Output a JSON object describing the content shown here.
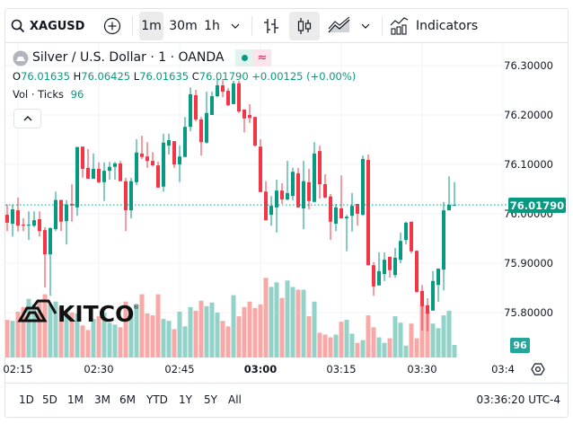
{
  "toolbar": {
    "symbol": "XAGUSD",
    "intervals": [
      "1m",
      "30m",
      "1h"
    ],
    "active_interval": "1m",
    "indicators_label": "Indicators",
    "icons": [
      "search-icon",
      "add-compare-icon",
      "chevron-down-icon",
      "bar-chart-icon",
      "candlestick-icon",
      "area-chart-icon",
      "chevron-down-icon",
      "indicators-icon"
    ]
  },
  "legend": {
    "title": "Silver / U.S. Dollar · 1 · OANDA",
    "market_status_icon": "≈",
    "open_label": "O",
    "open": "76.01635",
    "high_label": "H",
    "high": "76.06425",
    "low_label": "L",
    "low": "76.01635",
    "close_label": "C",
    "close": "76.01790",
    "change": "+0.00125 (+0.00%)",
    "volume_label": "Vol · Ticks",
    "volume_value": "96",
    "collapse_icon": "^"
  },
  "watermark": {
    "text": "KITCO",
    "mark": "®"
  },
  "price_axis": {
    "labels": [
      "76.30000",
      "76.20000",
      "76.10000",
      "76.00000",
      "75.90000",
      "75.80000"
    ],
    "current_price": "76.01790",
    "current_volume": "96"
  },
  "time_axis": {
    "labels": [
      "02:15",
      "02:30",
      "02:45",
      "03:00",
      "03:15",
      "03:30",
      "03:4"
    ],
    "bold_label": "03:00"
  },
  "bottom_bar": {
    "ranges": [
      "1D",
      "5D",
      "1M",
      "3M",
      "6M",
      "YTD",
      "1Y",
      "5Y",
      "All"
    ],
    "clock": "03:36:20 UTC-4"
  },
  "colors": {
    "up": "#089981",
    "down": "#f23645",
    "volume_up": "#92d2c8",
    "volume_down": "#f7a9a7",
    "current_price_bg": "#089981"
  },
  "chart_data": {
    "type": "candlestick",
    "interval": "1m",
    "first_bar_time": "02:13",
    "last_bar_time": "03:36",
    "ylim": [
      75.72,
      76.34
    ],
    "ohlc": [
      [
        75.998,
        76.019,
        75.965,
        75.982
      ],
      [
        75.98,
        76.019,
        75.954,
        76.009
      ],
      [
        76.007,
        76.033,
        75.964,
        75.976
      ],
      [
        75.978,
        75.991,
        75.965,
        75.976
      ],
      [
        75.976,
        76.005,
        75.947,
        75.978
      ],
      [
        75.976,
        76.005,
        75.973,
        75.987
      ],
      [
        75.989,
        76.005,
        75.954,
        75.965
      ],
      [
        75.967,
        75.973,
        75.851,
        75.918
      ],
      [
        75.918,
        75.973,
        75.834,
        75.971
      ],
      [
        75.969,
        76.045,
        75.965,
        76.028
      ],
      [
        76.028,
        76.028,
        75.965,
        75.984
      ],
      [
        75.985,
        76.028,
        75.938,
        76.019
      ],
      [
        76.02,
        76.06,
        75.984,
        76.017
      ],
      [
        76.013,
        76.136,
        75.996,
        76.135
      ],
      [
        76.136,
        76.136,
        76.073,
        76.091
      ],
      [
        76.093,
        76.131,
        76.071,
        76.071
      ],
      [
        76.071,
        76.122,
        76.071,
        76.091
      ],
      [
        76.091,
        76.104,
        76.062,
        76.064
      ],
      [
        76.064,
        76.104,
        76.026,
        76.087
      ],
      [
        76.087,
        76.105,
        76.069,
        76.095
      ],
      [
        76.095,
        76.105,
        76.069,
        76.102
      ],
      [
        76.102,
        76.107,
        76.066,
        76.066
      ],
      [
        76.066,
        76.073,
        75.965,
        76.007
      ],
      [
        76.007,
        76.073,
        75.991,
        76.066
      ],
      [
        76.064,
        76.151,
        76.058,
        76.124
      ],
      [
        76.122,
        76.158,
        76.111,
        76.115
      ],
      [
        76.116,
        76.145,
        76.093,
        76.107
      ],
      [
        76.107,
        76.125,
        76.096,
        76.098
      ],
      [
        76.098,
        76.106,
        76.053,
        76.053
      ],
      [
        76.055,
        76.162,
        76.045,
        76.144
      ],
      [
        76.138,
        76.162,
        76.12,
        76.149
      ],
      [
        76.147,
        76.147,
        76.093,
        76.1
      ],
      [
        76.1,
        76.138,
        76.064,
        76.116
      ],
      [
        76.115,
        76.196,
        76.115,
        76.176
      ],
      [
        76.176,
        76.256,
        76.167,
        76.242
      ],
      [
        76.24,
        76.251,
        76.187,
        76.191
      ],
      [
        76.191,
        76.196,
        76.118,
        76.145
      ],
      [
        76.144,
        76.247,
        76.142,
        76.204
      ],
      [
        76.2,
        76.247,
        76.2,
        76.238
      ],
      [
        76.238,
        76.273,
        76.236,
        76.26
      ],
      [
        76.26,
        76.273,
        76.236,
        76.247
      ],
      [
        76.249,
        76.254,
        76.218,
        76.22
      ],
      [
        76.222,
        76.269,
        76.222,
        76.264
      ],
      [
        76.264,
        76.269,
        76.204,
        76.207
      ],
      [
        76.211,
        76.211,
        76.165,
        76.193
      ],
      [
        76.2,
        76.222,
        76.184,
        76.194
      ],
      [
        76.196,
        76.196,
        76.136,
        76.138
      ],
      [
        76.136,
        76.151,
        76.044,
        76.044
      ],
      [
        76.045,
        76.066,
        75.987,
        75.987
      ],
      [
        75.998,
        76.036,
        75.976,
        76.016
      ],
      [
        76.013,
        76.069,
        75.962,
        76.047
      ],
      [
        76.047,
        76.062,
        76.02,
        76.029
      ],
      [
        76.029,
        76.107,
        76.027,
        76.042
      ],
      [
        76.036,
        76.093,
        76.027,
        76.085
      ],
      [
        76.082,
        76.093,
        76.013,
        76.013
      ],
      [
        76.011,
        76.107,
        75.969,
        76.066
      ],
      [
        76.064,
        76.091,
        76.009,
        76.026
      ],
      [
        76.024,
        76.145,
        76.024,
        76.122
      ],
      [
        76.127,
        76.138,
        76.031,
        76.06
      ],
      [
        76.06,
        76.08,
        76.031,
        76.033
      ],
      [
        76.035,
        76.04,
        75.947,
        75.984
      ],
      [
        75.98,
        76.02,
        75.965,
        76.013
      ],
      [
        76.011,
        76.078,
        75.991,
        75.991
      ],
      [
        75.991,
        75.998,
        75.924,
        75.994
      ],
      [
        75.996,
        76.042,
        75.964,
        76.016
      ],
      [
        76.02,
        76.02,
        75.976,
        76.0
      ],
      [
        75.998,
        76.118,
        75.996,
        76.111
      ],
      [
        76.109,
        76.12,
        75.896,
        75.896
      ],
      [
        75.896,
        75.902,
        75.834,
        75.853
      ],
      [
        75.855,
        75.922,
        75.855,
        75.884
      ],
      [
        75.878,
        75.922,
        75.864,
        75.907
      ],
      [
        75.913,
        75.913,
        75.871,
        75.886
      ],
      [
        75.876,
        75.931,
        75.871,
        75.911
      ],
      [
        75.907,
        75.962,
        75.9,
        75.945
      ],
      [
        75.947,
        75.984,
        75.938,
        75.982
      ],
      [
        75.984,
        75.984,
        75.92,
        75.924
      ],
      [
        75.925,
        75.926,
        75.84,
        75.842
      ],
      [
        75.844,
        75.856,
        75.764,
        75.813
      ],
      [
        75.815,
        75.829,
        75.762,
        75.798
      ],
      [
        75.804,
        75.884,
        75.804,
        75.864
      ],
      [
        75.856,
        75.889,
        75.822,
        75.889
      ],
      [
        75.887,
        76.024,
        75.845,
        76.007
      ],
      [
        76.007,
        76.076,
        76.007,
        76.018
      ],
      [
        76.01635,
        76.06425,
        76.01635,
        76.0179
      ]
    ],
    "volume": [
      287,
      280,
      350,
      385,
      448,
      406,
      441,
      483,
      406,
      427,
      385,
      357,
      343,
      336,
      245,
      210,
      294,
      315,
      343,
      266,
      252,
      231,
      427,
      350,
      406,
      483,
      336,
      322,
      483,
      294,
      280,
      217,
      350,
      238,
      385,
      357,
      434,
      392,
      420,
      343,
      280,
      238,
      476,
      315,
      385,
      427,
      378,
      406,
      609,
      539,
      574,
      455,
      588,
      539,
      518,
      518,
      315,
      427,
      189,
      175,
      154,
      175,
      273,
      287,
      182,
      112,
      133,
      322,
      231,
      154,
      112,
      147,
      315,
      266,
      91,
      259,
      147,
      406,
      350,
      259,
      224,
      322,
      357,
      96
    ]
  }
}
